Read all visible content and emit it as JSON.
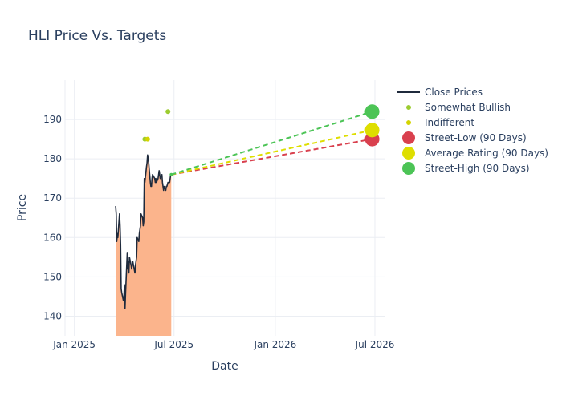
{
  "chart_data": {
    "type": "line",
    "title": "HLI Price Vs. Targets",
    "xlabel": "Date",
    "ylabel": "Price",
    "x_range": [
      "2024-12-15",
      "2026-07-20"
    ],
    "ylim": [
      135,
      200
    ],
    "grid": true,
    "legend_position": "top-right",
    "x_ticks": [
      {
        "date": "2025-01-01",
        "label": "Jan 2025"
      },
      {
        "date": "2025-07-01",
        "label": "Jul 2025"
      },
      {
        "date": "2026-01-01",
        "label": "Jan 2026"
      },
      {
        "date": "2026-07-01",
        "label": "Jul 2026"
      }
    ],
    "y_ticks": [
      140,
      150,
      160,
      170,
      180,
      190
    ],
    "series": [
      {
        "name": "Close Prices",
        "kind": "line_area",
        "color": "#1f2a3c",
        "fill_color": "#fbb48c",
        "points": [
          [
            "2025-03-17",
            168
          ],
          [
            "2025-03-18",
            166
          ],
          [
            "2025-03-19",
            159
          ],
          [
            "2025-03-20",
            161
          ],
          [
            "2025-03-21",
            160
          ],
          [
            "2025-03-24",
            166
          ],
          [
            "2025-03-25",
            163
          ],
          [
            "2025-03-26",
            158
          ],
          [
            "2025-03-27",
            147
          ],
          [
            "2025-03-28",
            146
          ],
          [
            "2025-03-31",
            144
          ],
          [
            "2025-04-01",
            145
          ],
          [
            "2025-04-02",
            148
          ],
          [
            "2025-04-03",
            142
          ],
          [
            "2025-04-04",
            146
          ],
          [
            "2025-04-07",
            156
          ],
          [
            "2025-04-08",
            152
          ],
          [
            "2025-04-09",
            154
          ],
          [
            "2025-04-10",
            151
          ],
          [
            "2025-04-11",
            155
          ],
          [
            "2025-04-14",
            153
          ],
          [
            "2025-04-15",
            152
          ],
          [
            "2025-04-16",
            153
          ],
          [
            "2025-04-17",
            154
          ],
          [
            "2025-04-21",
            151
          ],
          [
            "2025-04-22",
            153
          ],
          [
            "2025-04-23",
            154
          ],
          [
            "2025-04-24",
            155
          ],
          [
            "2025-04-25",
            160
          ],
          [
            "2025-04-28",
            159
          ],
          [
            "2025-04-29",
            161
          ],
          [
            "2025-04-30",
            162
          ],
          [
            "2025-05-01",
            163
          ],
          [
            "2025-05-02",
            166
          ],
          [
            "2025-05-05",
            165
          ],
          [
            "2025-05-06",
            163
          ],
          [
            "2025-05-07",
            164
          ],
          [
            "2025-05-08",
            175
          ],
          [
            "2025-05-09",
            174
          ],
          [
            "2025-05-12",
            178
          ],
          [
            "2025-05-13",
            179
          ],
          [
            "2025-05-14",
            181
          ],
          [
            "2025-05-15",
            180
          ],
          [
            "2025-05-16",
            179
          ],
          [
            "2025-05-19",
            174
          ],
          [
            "2025-05-20",
            173
          ],
          [
            "2025-05-21",
            173
          ],
          [
            "2025-05-22",
            175
          ],
          [
            "2025-05-23",
            176
          ],
          [
            "2025-05-27",
            175
          ],
          [
            "2025-05-28",
            174
          ],
          [
            "2025-05-29",
            175
          ],
          [
            "2025-05-30",
            174
          ],
          [
            "2025-06-02",
            175
          ],
          [
            "2025-06-03",
            176
          ],
          [
            "2025-06-04",
            177
          ],
          [
            "2025-06-05",
            176
          ],
          [
            "2025-06-06",
            175
          ],
          [
            "2025-06-09",
            176
          ],
          [
            "2025-06-10",
            174
          ],
          [
            "2025-06-11",
            173
          ],
          [
            "2025-06-12",
            172
          ],
          [
            "2025-06-13",
            173
          ],
          [
            "2025-06-16",
            172
          ],
          [
            "2025-06-17",
            173
          ],
          [
            "2025-06-18",
            173
          ],
          [
            "2025-06-20",
            174
          ],
          [
            "2025-06-23",
            174
          ],
          [
            "2025-06-24",
            175
          ],
          [
            "2025-06-25",
            176
          ],
          [
            "2025-06-26",
            176
          ]
        ]
      },
      {
        "name": "Somewhat Bullish",
        "kind": "markers",
        "color": "#9ccc30",
        "points": [
          [
            "2025-05-09",
            185
          ],
          [
            "2025-06-20",
            192
          ]
        ]
      },
      {
        "name": "Indifferent",
        "kind": "markers",
        "color": "#d4d400",
        "points": [
          [
            "2025-05-14",
            185
          ]
        ]
      },
      {
        "name": "Street-Low (90 Days)",
        "kind": "target",
        "color": "#d9404e",
        "points": [
          [
            "2025-06-26",
            176
          ],
          [
            "2026-06-26",
            185
          ]
        ]
      },
      {
        "name": "Average Rating (90 Days)",
        "kind": "target",
        "color": "#dede00",
        "points": [
          [
            "2025-06-26",
            176
          ],
          [
            "2026-06-26",
            187.3
          ]
        ]
      },
      {
        "name": "Street-High (90 Days)",
        "kind": "target",
        "color": "#4cc456",
        "points": [
          [
            "2025-06-26",
            176
          ],
          [
            "2026-06-26",
            192
          ]
        ]
      }
    ]
  }
}
